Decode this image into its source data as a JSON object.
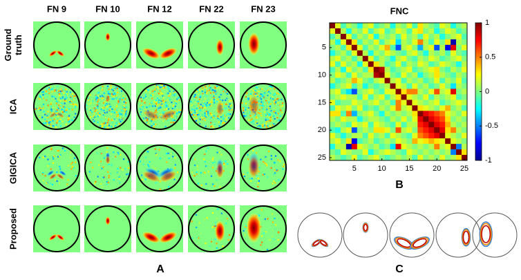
{
  "figure": {
    "column_headers": [
      "FN 9",
      "FN 10",
      "FN 12",
      "FN 22",
      "FN 23"
    ],
    "row_labels": [
      [
        "Ground",
        "truth"
      ],
      [
        "ICA"
      ],
      [
        "GIGICA"
      ],
      [
        "Proposed"
      ]
    ],
    "panel_labels": [
      "A",
      "B",
      "C"
    ]
  },
  "chart_data": {
    "type": "heatmap",
    "title": "FNC",
    "colormap": "jet",
    "xlim": [
      0.5,
      25.5
    ],
    "ylim": [
      0.5,
      25.5
    ],
    "xticks": [
      5,
      10,
      15,
      20,
      25
    ],
    "yticks": [
      5,
      10,
      15,
      20,
      25
    ],
    "clim": [
      -1,
      1
    ],
    "cticks": [
      1,
      0.5,
      0,
      -0.5,
      -1
    ],
    "matrix": [
      [
        1,
        0.2,
        -0.1,
        0.1,
        0,
        -0.2,
        0.1,
        0.2,
        -0.1,
        0,
        0.1,
        -0.2,
        0.1,
        0,
        0.2,
        -0.1,
        0.3,
        0.1,
        0,
        -0.1,
        0.2,
        0.1,
        -0.2,
        0,
        0.1
      ],
      [
        0.2,
        1,
        0.1,
        -0.2,
        0.1,
        0,
        0.2,
        -0.1,
        0.1,
        0.2,
        -0.1,
        0,
        0.2,
        0.1,
        -0.1,
        0.2,
        0.3,
        0,
        0.1,
        -0.2,
        0,
        0.2,
        0.1,
        -0.1,
        0
      ],
      [
        -0.1,
        0.1,
        1,
        0.2,
        -0.1,
        0.1,
        0,
        0.2,
        -0.2,
        0.1,
        0,
        0.1,
        -0.1,
        0.2,
        0,
        0.1,
        -0.1,
        0.2,
        0,
        0.1,
        -0.2,
        0,
        0.1,
        0.2,
        -0.1
      ],
      [
        0.1,
        -0.2,
        0.2,
        1,
        0.3,
        -0.1,
        0.1,
        0,
        0.2,
        -0.1,
        0.1,
        0.2,
        -0.3,
        0.1,
        0,
        0.2,
        0.5,
        0.1,
        -0.1,
        0.2,
        0,
        0.3,
        -0.9,
        0.1,
        0
      ],
      [
        0,
        0.1,
        -0.1,
        0.3,
        1,
        0.2,
        -0.1,
        0.1,
        0,
        0.2,
        0.4,
        -0.1,
        -0.6,
        0.1,
        0.2,
        0,
        -0.4,
        0.1,
        0.2,
        -0.6,
        0.1,
        -0.8,
        0.8,
        0,
        0.2
      ],
      [
        -0.2,
        0,
        0.1,
        -0.1,
        0.2,
        1,
        0.1,
        -0.2,
        0.1,
        0,
        0.2,
        0.1,
        0,
        -0.1,
        0.1,
        0.2,
        0,
        -0.2,
        0.1,
        0,
        0.1,
        -0.1,
        0.2,
        0,
        -0.1
      ],
      [
        0.1,
        0.2,
        0,
        0.1,
        -0.1,
        0.1,
        1,
        0.2,
        -0.1,
        0.1,
        0,
        -0.2,
        0.1,
        0.2,
        0,
        -0.1,
        0.1,
        0,
        0.2,
        0.1,
        -0.1,
        0,
        0.1,
        0.2,
        0
      ],
      [
        0.2,
        -0.1,
        0.2,
        0,
        0.1,
        -0.2,
        0.2,
        1,
        0.3,
        0.1,
        -0.1,
        0,
        0.2,
        -0.1,
        0.1,
        0,
        0.2,
        0.1,
        -0.1,
        0,
        0.2,
        0.1,
        0,
        -0.2,
        0.1
      ],
      [
        -0.1,
        0.1,
        -0.2,
        0.2,
        0,
        0.1,
        -0.1,
        0.3,
        1,
        0.9,
        0.1,
        -0.1,
        0,
        0.1,
        0.2,
        -0.1,
        0,
        0.1,
        0.2,
        0.3,
        0,
        -0.1,
        0.1,
        0,
        0.2
      ],
      [
        0,
        0.2,
        0.1,
        -0.1,
        0.2,
        0,
        0.1,
        0.1,
        0.9,
        1,
        0.2,
        0,
        -0.1,
        0.2,
        0,
        0.1,
        -0.2,
        0,
        0.1,
        0.3,
        0.1,
        0,
        -0.1,
        0.1,
        0
      ],
      [
        0.1,
        -0.1,
        0,
        0.1,
        0.4,
        0.2,
        0,
        -0.1,
        0.1,
        0.2,
        1,
        0.1,
        0.2,
        -0.1,
        0.1,
        0,
        0.1,
        -0.1,
        0,
        0.2,
        -0.1,
        0.1,
        0,
        0.2,
        -0.1
      ],
      [
        -0.2,
        0,
        0.1,
        0.2,
        -0.1,
        0.1,
        -0.2,
        0,
        -0.1,
        0,
        0.1,
        1,
        0.2,
        0.1,
        -0.1,
        0.2,
        0,
        0.1,
        -0.1,
        0,
        0.2,
        0,
        -0.3,
        0.1,
        0
      ],
      [
        0.1,
        0.2,
        -0.1,
        -0.3,
        -0.6,
        0,
        0.1,
        0.2,
        0,
        -0.1,
        0.2,
        0.2,
        1,
        0.3,
        0.5,
        0.5,
        0.1,
        0,
        0.2,
        0.6,
        0.1,
        0.2,
        0.8,
        0,
        0.1
      ],
      [
        0,
        0.1,
        0.2,
        0.1,
        0.1,
        -0.1,
        0.2,
        -0.1,
        0.1,
        0.2,
        -0.1,
        0.1,
        0.3,
        1,
        0.2,
        0.1,
        0,
        0.2,
        -0.1,
        0.1,
        0,
        0.1,
        0.2,
        -0.1,
        0
      ],
      [
        0.2,
        -0.1,
        0,
        0,
        0.2,
        0.1,
        0,
        0.1,
        0.2,
        0,
        0.1,
        -0.1,
        0.5,
        0.2,
        1,
        0.2,
        0.1,
        0,
        0.1,
        0.2,
        -0.1,
        0,
        0.1,
        0.2,
        0.1
      ],
      [
        -0.1,
        0.2,
        0.1,
        0.2,
        0,
        0.2,
        -0.1,
        0,
        -0.1,
        0.1,
        0,
        0.2,
        0.5,
        0.1,
        0.2,
        1,
        0.3,
        0.2,
        0.1,
        0,
        0.2,
        0.4,
        0,
        0.1,
        -0.1
      ],
      [
        0.3,
        0.3,
        -0.1,
        0.5,
        -0.4,
        0,
        0.1,
        0.2,
        0,
        -0.2,
        0.1,
        0,
        0.1,
        0,
        0.1,
        0.3,
        1,
        0.8,
        0.7,
        0.6,
        0.5,
        0.2,
        0.1,
        0,
        0.2
      ],
      [
        0.1,
        0,
        0.2,
        0.1,
        0.1,
        -0.2,
        0,
        0.1,
        0.1,
        0,
        -0.1,
        0.1,
        0,
        0.2,
        0,
        0.2,
        0.8,
        1,
        0.8,
        0.7,
        0.6,
        0.3,
        0,
        0.1,
        0
      ],
      [
        0,
        0.1,
        0,
        -0.1,
        0.2,
        0.1,
        0.2,
        -0.1,
        0.2,
        0.1,
        0,
        -0.1,
        0.2,
        -0.1,
        0.1,
        0.1,
        0.7,
        0.8,
        1,
        0.8,
        0.7,
        0.4,
        0.1,
        0,
        0.1
      ],
      [
        -0.1,
        -0.2,
        0.1,
        0.2,
        -0.6,
        0,
        0.1,
        0,
        0.3,
        0.3,
        0.2,
        0,
        0.6,
        0.1,
        0.2,
        0,
        0.6,
        0.7,
        0.8,
        1,
        0.8,
        0.3,
        0.5,
        0.1,
        0
      ],
      [
        0.2,
        0,
        -0.2,
        0,
        0.1,
        0.1,
        -0.1,
        0.2,
        0,
        0.1,
        -0.1,
        0.2,
        0.1,
        0,
        -0.1,
        0.2,
        0.5,
        0.6,
        0.7,
        0.8,
        1,
        0.2,
        0.1,
        0,
        0.2
      ],
      [
        0.1,
        0.2,
        0,
        0.3,
        -0.8,
        -0.1,
        0,
        0.1,
        -0.1,
        0,
        0.1,
        0,
        0.2,
        0.1,
        0,
        0.4,
        0.2,
        0.3,
        0.4,
        0.3,
        0.2,
        1,
        0.2,
        0.1,
        0
      ],
      [
        -0.2,
        0.1,
        0.1,
        -0.9,
        0.8,
        0.2,
        0.1,
        0,
        0.1,
        -0.1,
        0,
        -0.3,
        0.8,
        0.2,
        0.1,
        0,
        0.1,
        0,
        0.1,
        0.5,
        0.1,
        0.2,
        1,
        -0.5,
        0.1
      ],
      [
        0,
        -0.1,
        0.2,
        0.1,
        0,
        0,
        0.2,
        -0.2,
        0,
        0.1,
        0.2,
        0.1,
        0,
        -0.1,
        0.2,
        0.1,
        0,
        0.1,
        0,
        0.1,
        0,
        0.1,
        -0.5,
        1,
        0.3
      ],
      [
        0.1,
        0,
        -0.1,
        0,
        0.2,
        -0.1,
        0,
        0.1,
        0.2,
        0,
        -0.1,
        0,
        0.1,
        0,
        0.1,
        -0.1,
        0.2,
        0,
        0.1,
        0,
        0.2,
        0,
        0.1,
        0.3,
        1
      ]
    ]
  }
}
